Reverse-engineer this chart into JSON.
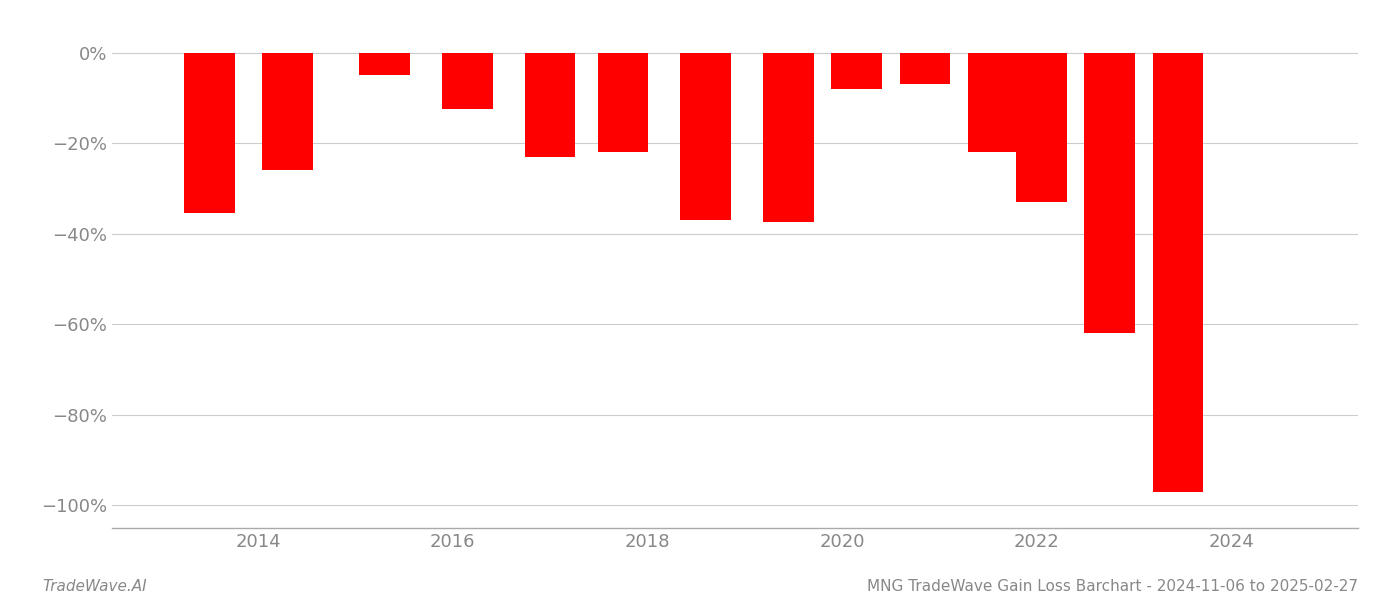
{
  "bar_centers": [
    2013.5,
    2014.3,
    2015.3,
    2016.15,
    2017.0,
    2017.75,
    2018.6,
    2019.45,
    2020.15,
    2020.85,
    2021.55,
    2022.05,
    2022.75,
    2023.45
  ],
  "values": [
    -0.355,
    -0.26,
    -0.05,
    -0.125,
    -0.23,
    -0.22,
    -0.37,
    -0.375,
    -0.08,
    -0.07,
    -0.22,
    -0.33,
    -0.62,
    -0.97
  ],
  "bar_color": "#FF0000",
  "bar_width": 0.52,
  "ylim": [
    -1.05,
    0.05
  ],
  "yticks": [
    0.0,
    -0.2,
    -0.4,
    -0.6,
    -0.8,
    -1.0
  ],
  "ytick_labels": [
    "0%",
    "−20%",
    "−40%",
    "−60%",
    "−80%",
    "−100%"
  ],
  "xlim": [
    2012.5,
    2025.3
  ],
  "xticks": [
    2014,
    2016,
    2018,
    2020,
    2022,
    2024
  ],
  "grid_color": "#cccccc",
  "background_color": "#ffffff",
  "text_color": "#888888",
  "footer_left": "TradeWave.AI",
  "footer_right": "MNG TradeWave Gain Loss Barchart - 2024-11-06 to 2025-02-27",
  "footer_fontsize": 11,
  "tick_fontsize": 13
}
